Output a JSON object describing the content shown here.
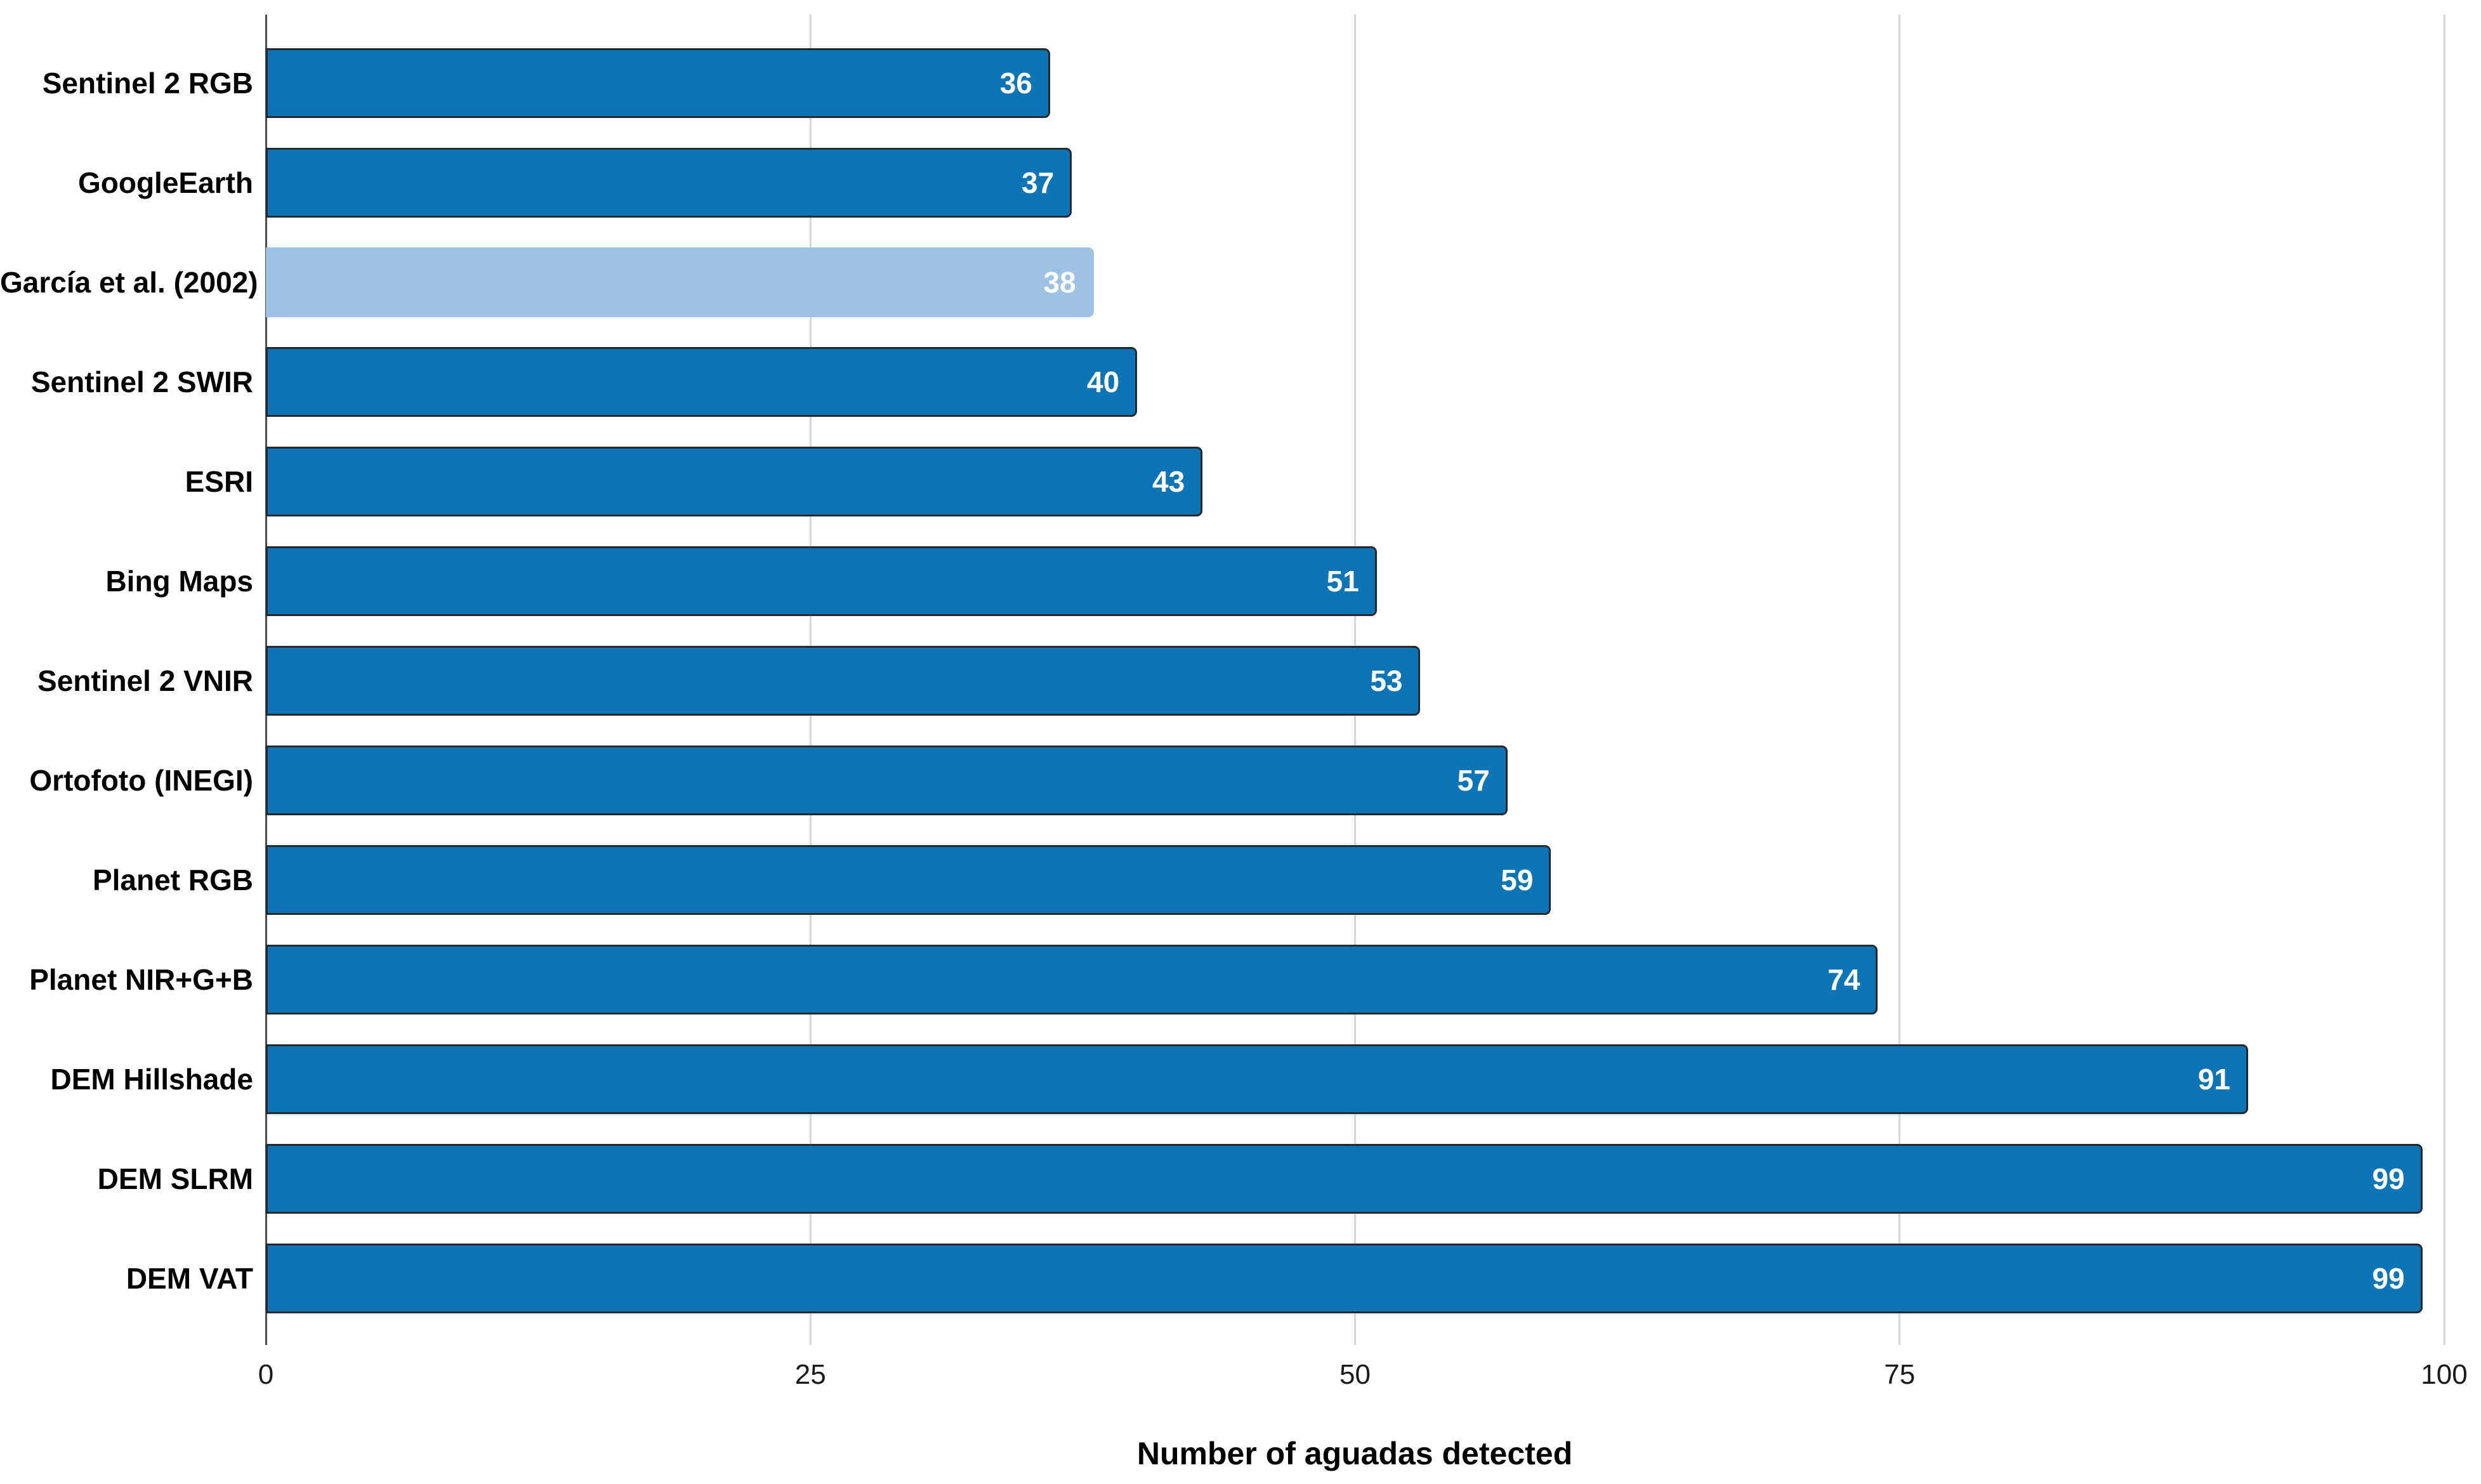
{
  "chart_data": {
    "type": "bar",
    "orientation": "horizontal",
    "title": "",
    "xlabel": "Number of aguadas detected",
    "ylabel": "",
    "categories": [
      "Sentinel 2 RGB",
      "GoogleEarth",
      "García et al. (2002)",
      "Sentinel 2 SWIR",
      "ESRI",
      "Bing Maps",
      "Sentinel 2 VNIR",
      "Ortofoto (INEGI)",
      "Planet RGB",
      "Planet NIR+G+B",
      "DEM Hillshade",
      "DEM SLRM",
      "DEM VAT"
    ],
    "values": [
      36,
      37,
      38,
      40,
      43,
      51,
      53,
      57,
      59,
      74,
      91,
      99,
      99
    ],
    "value_labels": [
      "36",
      "37",
      "38",
      "40",
      "43",
      "51",
      "53",
      "57",
      "59",
      "74",
      "91",
      "99",
      "99"
    ],
    "highlight_index": 2,
    "xlim": [
      0,
      100
    ],
    "xticks": [
      0,
      25,
      50,
      75,
      100
    ],
    "xtick_labels": [
      "0",
      "25",
      "50",
      "75",
      "100"
    ],
    "grid": "vertical-gridlines-on",
    "legend": null,
    "colors": {
      "bar": "#0d75b5",
      "bar_highlight": "#9cc3e6",
      "bar_border": "#26292e",
      "gridline": "#d6d6d6",
      "axis_line": "#4d4d4d",
      "value_label": "#ffffff",
      "text": "#000000",
      "background": "#ffffff"
    }
  }
}
